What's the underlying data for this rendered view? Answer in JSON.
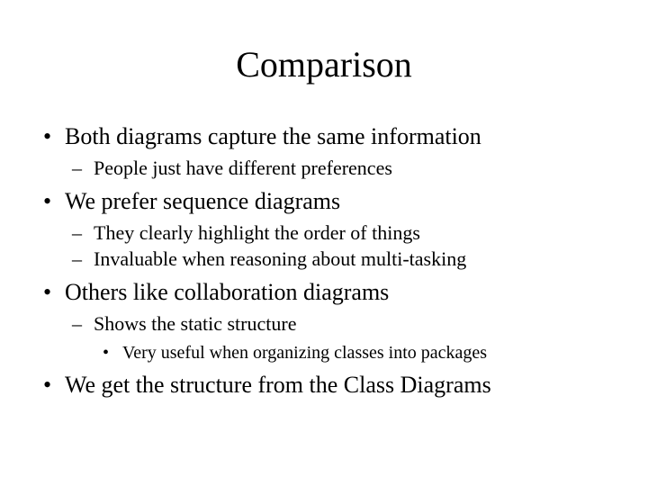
{
  "slide": {
    "title": "Comparison",
    "title_fontsize": 40,
    "background_color": "#ffffff",
    "text_color": "#000000",
    "font_family": "Times New Roman",
    "bullets": {
      "l1_0": "Both diagrams capture the same information",
      "l1_0_l2_0": "People just have different preferences",
      "l1_1": "We prefer sequence diagrams",
      "l1_1_l2_0": "They clearly highlight the order of things",
      "l1_1_l2_1": "Invaluable when reasoning about multi-tasking",
      "l1_2": "Others like collaboration diagrams",
      "l1_2_l2_0": "Shows the static structure",
      "l1_2_l2_0_l3_0": "Very useful when organizing classes into packages",
      "l1_3": "We get the structure from the Class Diagrams"
    },
    "level1_fontsize": 26,
    "level2_fontsize": 22,
    "level3_fontsize": 20
  }
}
